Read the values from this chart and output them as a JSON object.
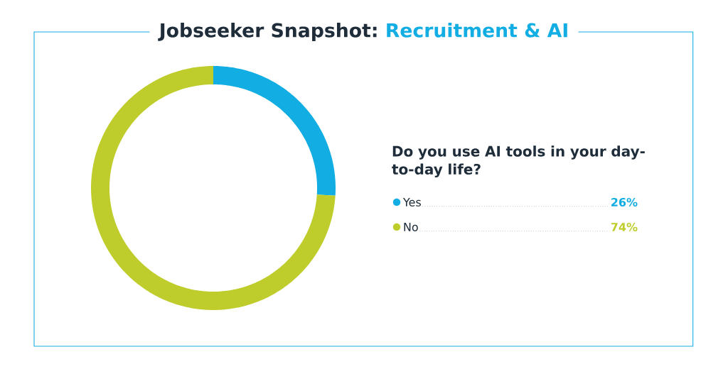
{
  "chart_data": {
    "type": "donut",
    "title": "Jobseeker Snapshot:",
    "subtitle": "Recruitment & AI",
    "legend_title": "Do you use AI tools in your day-to-day life?",
    "categories": [
      "Yes",
      "No"
    ],
    "values": [
      26,
      74
    ],
    "colors": [
      "#12ade3",
      "#bfcd2c"
    ],
    "value_labels": [
      "26%",
      "74%"
    ],
    "legend": "right"
  }
}
